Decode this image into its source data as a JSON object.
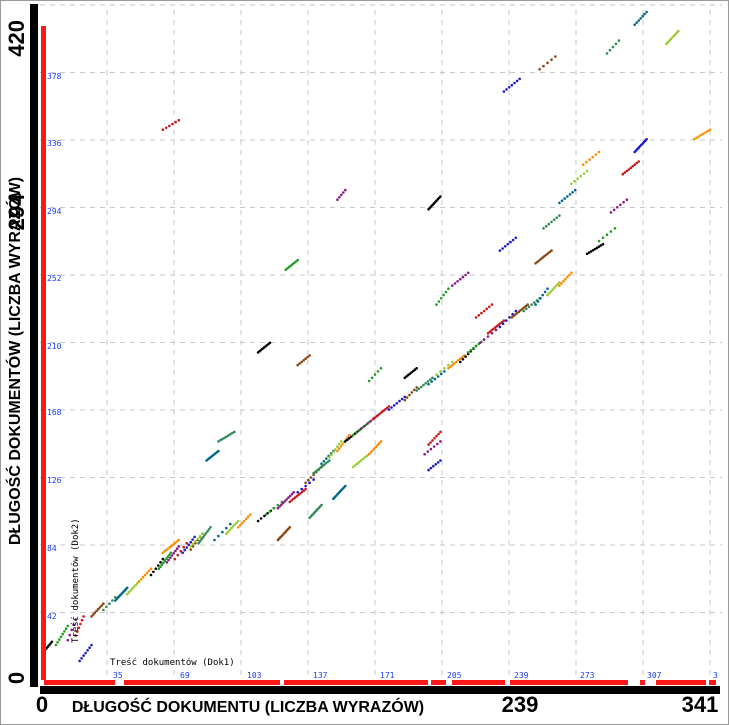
{
  "chart_data": {
    "type": "scatter",
    "x_axis": {
      "label": "DŁUGOŚĆ DOKUMENTU (LICZBA WYRAZÓW)",
      "major_ticks": [
        "0",
        "239",
        "341"
      ],
      "minor_ticks": [
        "35",
        "69",
        "103",
        "137",
        "171",
        "205",
        "239",
        "273",
        "307",
        "3"
      ],
      "inner_label": "Treść dokumentów (Dok1)",
      "range": [
        0,
        341
      ]
    },
    "y_axis": {
      "label": "DŁUGOŚĆ DOKUMENTÓW (LICZBA WYRAZÓW)",
      "major_ticks": [
        "0",
        "294",
        "420"
      ],
      "minor_ticks": [
        "42",
        "84",
        "126",
        "168",
        "210",
        "252",
        "294",
        "336",
        "378"
      ],
      "inner_label": "Treść dokumentów (Dok2)",
      "range": [
        0,
        420
      ]
    },
    "grid": true,
    "colors": [
      "#000000",
      "#1f9e1f",
      "#8b1a8b",
      "#cc1a1a",
      "#1a1acc",
      "#8b4513",
      "#2e8b57",
      "#00688b",
      "#99cc33",
      "#ff8c00"
    ],
    "segments": [
      [
        2,
        6,
        18,
        24
      ],
      [
        8,
        14,
        22,
        34
      ],
      [
        14,
        18,
        25,
        38
      ],
      [
        18,
        22,
        28,
        40
      ],
      [
        20,
        26,
        12,
        22
      ],
      [
        26,
        32,
        40,
        48
      ],
      [
        32,
        38,
        44,
        52
      ],
      [
        38,
        44,
        50,
        58
      ],
      [
        44,
        50,
        54,
        62
      ],
      [
        50,
        56,
        62,
        70
      ],
      [
        56,
        62,
        66,
        76
      ],
      [
        60,
        66,
        70,
        80
      ],
      [
        64,
        70,
        74,
        84
      ],
      [
        68,
        74,
        76,
        86
      ],
      [
        72,
        78,
        80,
        90
      ],
      [
        76,
        82,
        82,
        92
      ],
      [
        80,
        86,
        86,
        96
      ],
      [
        88,
        96,
        88,
        98
      ],
      [
        94,
        100,
        92,
        100
      ],
      [
        100,
        106,
        96,
        104
      ],
      [
        110,
        118,
        100,
        108
      ],
      [
        114,
        122,
        104,
        112
      ],
      [
        120,
        128,
        108,
        118
      ],
      [
        126,
        134,
        112,
        120
      ],
      [
        130,
        138,
        118,
        126
      ],
      [
        134,
        142,
        124,
        134
      ],
      [
        138,
        146,
        130,
        138
      ],
      [
        142,
        148,
        136,
        144
      ],
      [
        146,
        152,
        140,
        150
      ],
      [
        150,
        156,
        144,
        154
      ],
      [
        154,
        162,
        150,
        158
      ],
      [
        158,
        166,
        154,
        162
      ],
      [
        162,
        170,
        158,
        166
      ],
      [
        168,
        176,
        164,
        172
      ],
      [
        176,
        184,
        170,
        178
      ],
      [
        184,
        190,
        176,
        184
      ],
      [
        190,
        198,
        182,
        190
      ],
      [
        196,
        204,
        186,
        194
      ],
      [
        200,
        208,
        192,
        200
      ],
      [
        206,
        214,
        196,
        204
      ],
      [
        212,
        220,
        200,
        210
      ],
      [
        216,
        224,
        206,
        214
      ],
      [
        222,
        230,
        212,
        220
      ],
      [
        226,
        234,
        218,
        226
      ],
      [
        232,
        240,
        222,
        232
      ],
      [
        238,
        246,
        228,
        236
      ],
      [
        244,
        252,
        232,
        240
      ],
      [
        250,
        256,
        236,
        246
      ],
      [
        256,
        262,
        242,
        250
      ],
      [
        262,
        268,
        248,
        256
      ],
      [
        110,
        116,
        206,
        212
      ],
      [
        124,
        130,
        258,
        264
      ],
      [
        150,
        154,
        302,
        308
      ],
      [
        62,
        70,
        346,
        352
      ],
      [
        234,
        242,
        370,
        378
      ],
      [
        252,
        260,
        384,
        392
      ],
      [
        286,
        292,
        394,
        402
      ],
      [
        300,
        306,
        412,
        420
      ],
      [
        316,
        322,
        400,
        408
      ],
      [
        330,
        338,
        340,
        346
      ],
      [
        196,
        202,
        296,
        304
      ],
      [
        200,
        206,
        236,
        246
      ],
      [
        208,
        216,
        248,
        256
      ],
      [
        220,
        228,
        228,
        236
      ],
      [
        232,
        240,
        270,
        278
      ],
      [
        250,
        258,
        262,
        270
      ],
      [
        254,
        262,
        284,
        292
      ],
      [
        262,
        270,
        300,
        308
      ],
      [
        268,
        276,
        312,
        320
      ],
      [
        274,
        282,
        324,
        332
      ],
      [
        276,
        284,
        268,
        274
      ],
      [
        282,
        290,
        276,
        284
      ],
      [
        288,
        296,
        294,
        302
      ],
      [
        294,
        302,
        318,
        326
      ],
      [
        300,
        306,
        332,
        340
      ],
      [
        120,
        126,
        88,
        96
      ],
      [
        136,
        142,
        102,
        110
      ],
      [
        148,
        154,
        114,
        122
      ],
      [
        158,
        166,
        134,
        142
      ],
      [
        166,
        172,
        142,
        150
      ],
      [
        184,
        190,
        190,
        196
      ],
      [
        166,
        172,
        188,
        196
      ],
      [
        194,
        202,
        142,
        150
      ],
      [
        196,
        202,
        148,
        156
      ],
      [
        196,
        202,
        132,
        138
      ],
      [
        130,
        136,
        198,
        204
      ],
      [
        90,
        98,
        150,
        156
      ],
      [
        84,
        90,
        138,
        144
      ],
      [
        76,
        82,
        84,
        92
      ],
      [
        62,
        70,
        80,
        88
      ]
    ]
  },
  "meta": {
    "tick_labels_top_left": "420",
    "tick_label_mid_y": "294",
    "tick_label_origin": "0"
  }
}
